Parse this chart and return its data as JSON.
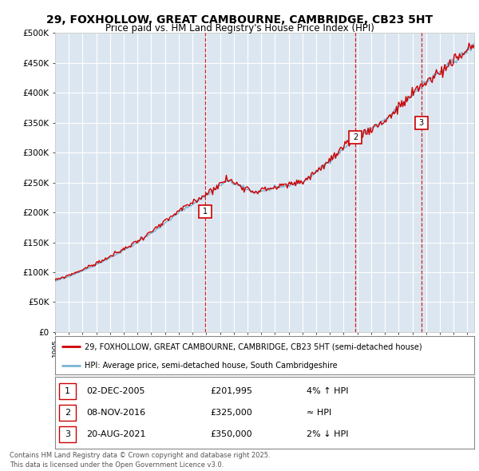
{
  "title": "29, FOXHOLLOW, GREAT CAMBOURNE, CAMBRIDGE, CB23 5HT",
  "subtitle": "Price paid vs. HM Land Registry's House Price Index (HPI)",
  "legend_line1": "29, FOXHOLLOW, GREAT CAMBOURNE, CAMBRIDGE, CB23 5HT (semi-detached house)",
  "legend_line2": "HPI: Average price, semi-detached house, South Cambridgeshire",
  "footer": "Contains HM Land Registry data © Crown copyright and database right 2025.\nThis data is licensed under the Open Government Licence v3.0.",
  "sales": [
    {
      "num": 1,
      "date": "02-DEC-2005",
      "price": "£201,995",
      "rel": "4% ↑ HPI",
      "year": 2005.92,
      "price_val": 201995
    },
    {
      "num": 2,
      "date": "08-NOV-2016",
      "price": "£325,000",
      "rel": "≈ HPI",
      "year": 2016.86,
      "price_val": 325000
    },
    {
      "num": 3,
      "date": "20-AUG-2021",
      "price": "£350,000",
      "rel": "2% ↓ HPI",
      "year": 2021.64,
      "price_val": 350000
    }
  ],
  "ylim": [
    0,
    500000
  ],
  "xlim_start": 1995.0,
  "xlim_end": 2025.5,
  "plot_bg_color": "#dce6f0",
  "grid_color": "#ffffff",
  "hpi_color": "#7ab3d4",
  "price_color": "#cc0000",
  "vline_color": "#cc0000",
  "title_fontsize": 10,
  "subtitle_fontsize": 8.5
}
